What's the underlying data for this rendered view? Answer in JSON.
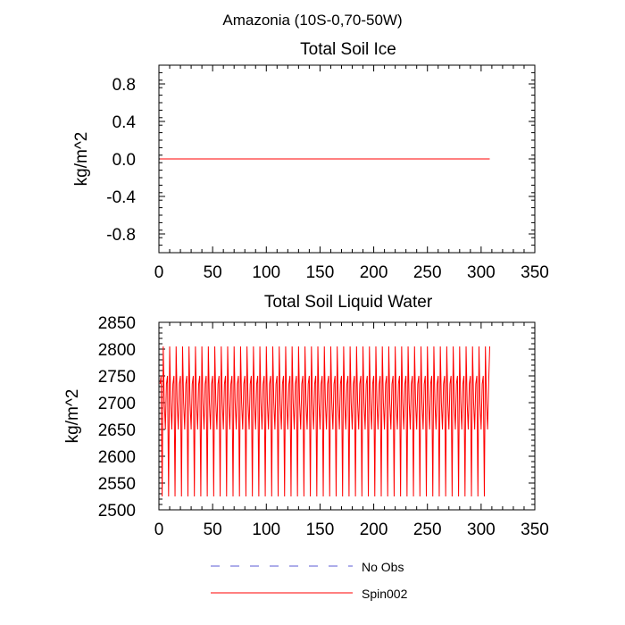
{
  "figure": {
    "title": "Amazonia (10S-0,70-50W)"
  },
  "legend": {
    "placement": "bottom-center",
    "entries": [
      {
        "label": "No Obs",
        "color": "#5b5bd6",
        "style": "dashed"
      },
      {
        "label": "Spin002",
        "color": "#ff0000",
        "style": "solid"
      }
    ]
  },
  "chart_data": [
    {
      "type": "line",
      "title": "Total Soil Ice",
      "xlabel": "",
      "ylabel": "kg/m^2",
      "xlim": [
        0,
        350
      ],
      "ylim": [
        -1.0,
        1.0
      ],
      "xticks": [
        0,
        50,
        100,
        150,
        200,
        250,
        300,
        350
      ],
      "xtick_labels": [
        "0",
        "50",
        "100",
        "150",
        "200",
        "250",
        "300",
        "350"
      ],
      "yticks": [
        -0.8,
        -0.4,
        0.0,
        0.4,
        0.8
      ],
      "ytick_labels": [
        "-0.8",
        "-0.4",
        "0.0",
        "0.4",
        "0.8"
      ],
      "grid": false,
      "series": [
        {
          "name": "Spin002",
          "color": "#ff0000",
          "x_start": 1,
          "x_end": 308,
          "constant_value": 0.0
        }
      ]
    },
    {
      "type": "line",
      "title": "Total Soil Liquid Water",
      "xlabel": "",
      "ylabel": "kg/m^2",
      "xlim": [
        0,
        350
      ],
      "ylim": [
        2500,
        2850
      ],
      "xticks": [
        0,
        50,
        100,
        150,
        200,
        250,
        300,
        350
      ],
      "xtick_labels": [
        "0",
        "50",
        "100",
        "150",
        "200",
        "250",
        "300",
        "350"
      ],
      "yticks": [
        2500,
        2550,
        2600,
        2650,
        2700,
        2750,
        2800,
        2850
      ],
      "ytick_labels": [
        "2500",
        "2550",
        "2600",
        "2650",
        "2700",
        "2750",
        "2800",
        "2850"
      ],
      "grid": false,
      "series": [
        {
          "name": "Spin002",
          "color": "#ff0000",
          "x_start": 1,
          "x_end": 308,
          "period_months": 6,
          "cycle_values": [
            2735,
            2750,
            2525,
            2805,
            2700,
            2650
          ],
          "final_value": 2805
        }
      ]
    }
  ]
}
